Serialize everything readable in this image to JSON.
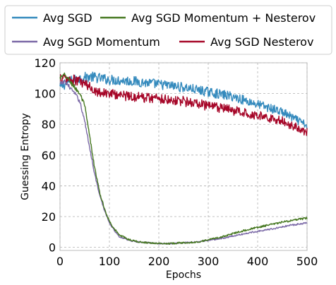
{
  "chart_data": {
    "type": "line",
    "xlabel": "Epochs",
    "ylabel": "Guessing Entropy",
    "xlim": [
      0,
      500
    ],
    "ylim": [
      -2,
      120
    ],
    "xticks": [
      0,
      100,
      200,
      300,
      400,
      500
    ],
    "yticks": [
      0,
      20,
      40,
      60,
      80,
      100,
      120
    ],
    "grid": true,
    "legend_position": "top, outside plot, 2 columns",
    "series": [
      {
        "name": "Avg SGD",
        "color": "#348ABD",
        "noise": 2.4,
        "x": [
          0,
          20,
          40,
          60,
          80,
          100,
          150,
          200,
          250,
          300,
          350,
          400,
          450,
          500
        ],
        "y": [
          104,
          108,
          110,
          111,
          110,
          109,
          108,
          106,
          104,
          101,
          98,
          93,
          88,
          79
        ]
      },
      {
        "name": "Avg SGD Momentum + Nesterov",
        "color": "#467821",
        "noise": 1.2,
        "x": [
          0,
          10,
          20,
          30,
          40,
          50,
          60,
          70,
          80,
          90,
          100,
          110,
          120,
          140,
          160,
          180,
          200,
          220,
          250,
          280,
          300,
          330,
          360,
          400,
          430,
          460,
          500
        ],
        "y": [
          110,
          112,
          108,
          104,
          100,
          92,
          72,
          52,
          36,
          25,
          17,
          12,
          8,
          5,
          3.5,
          3,
          2.5,
          2.5,
          3,
          3.5,
          5,
          7,
          10,
          13,
          15,
          17,
          19
        ]
      },
      {
        "name": "Avg SGD Momentum",
        "color": "#7A68A6",
        "noise": 1.0,
        "x": [
          0,
          10,
          20,
          30,
          40,
          50,
          60,
          70,
          80,
          90,
          100,
          110,
          120,
          140,
          160,
          180,
          200,
          220,
          250,
          280,
          300,
          330,
          360,
          400,
          430,
          460,
          500
        ],
        "y": [
          106,
          108,
          104,
          100,
          95,
          82,
          65,
          48,
          34,
          24,
          16,
          11,
          7,
          4.5,
          3.5,
          3,
          2.5,
          2.5,
          3,
          3.5,
          4.5,
          6,
          8,
          10.5,
          12,
          14,
          16
        ]
      },
      {
        "name": "Avg SGD Nesterov",
        "color": "#A60628",
        "noise": 2.6,
        "x": [
          0,
          20,
          40,
          60,
          80,
          100,
          150,
          200,
          250,
          300,
          350,
          400,
          450,
          500
        ],
        "y": [
          110,
          109,
          108,
          104,
          101,
          100,
          98,
          97,
          95,
          92,
          89,
          86,
          82,
          75
        ]
      }
    ]
  }
}
